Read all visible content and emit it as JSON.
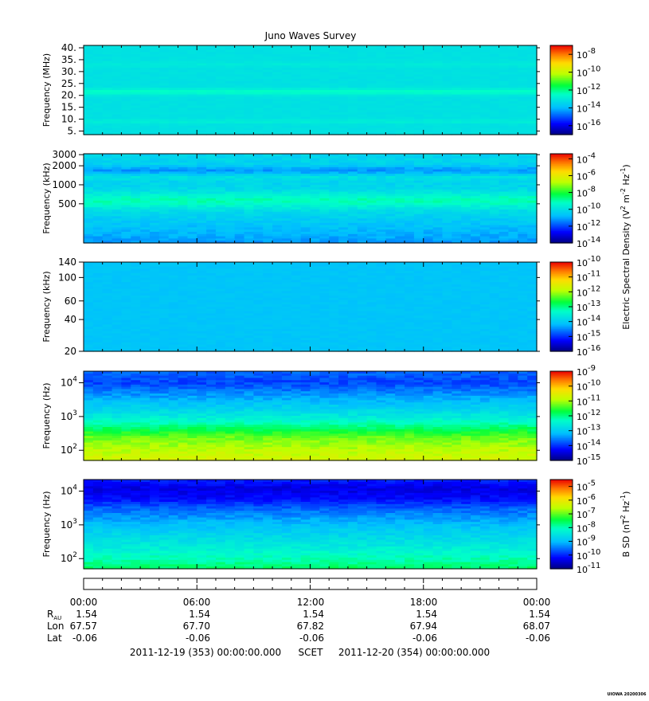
{
  "chart_data": {
    "type": "heatmap",
    "title": "Juno Waves Survey",
    "panels": [
      {
        "ylabel": "Frequency (MHz)",
        "yscale": "linear",
        "ylim": [
          3.5,
          41
        ],
        "yticks": [
          {
            "v": 5,
            "l": "5."
          },
          {
            "v": 10,
            "l": "10."
          },
          {
            "v": 15,
            "l": "15."
          },
          {
            "v": 20,
            "l": "20."
          },
          {
            "v": 25,
            "l": "25."
          },
          {
            "v": 30,
            "l": "30."
          },
          {
            "v": 35,
            "l": "35."
          },
          {
            "v": 40,
            "l": "40."
          }
        ],
        "colorbar": {
          "min_exp": -17,
          "max_exp": -7,
          "ticks": [
            {
              "exp": -8,
              "l": "-8"
            },
            {
              "exp": -10,
              "l": "-10"
            },
            {
              "exp": -12,
              "l": "-12"
            },
            {
              "exp": -14,
              "l": "-14"
            },
            {
              "exp": -16,
              "l": "-16"
            }
          ]
        },
        "background_log": -13.2,
        "bands": [
          {
            "y": 21.5,
            "w": 0.9,
            "log": -12.5
          },
          {
            "y": 9,
            "w": 0.6,
            "log": -12.9
          },
          {
            "y": 33,
            "w": 0.8,
            "log": -13.0
          }
        ],
        "noise": 0.15,
        "fade_low": false
      },
      {
        "ylabel": "Frequency (kHz)",
        "yscale": "log",
        "ylim": [
          120,
          3100
        ],
        "yticks": [
          {
            "v": 500,
            "l": "500"
          },
          {
            "v": 1000,
            "l": "1000"
          },
          {
            "v": 2000,
            "l": "2000"
          },
          {
            "v": 3000,
            "l": "3000"
          }
        ],
        "colorbar": {
          "min_exp": -14,
          "max_exp": -3.4,
          "ticks": [
            {
              "exp": -4,
              "l": "-4"
            },
            {
              "exp": -6,
              "l": "-6"
            },
            {
              "exp": -8,
              "l": "-8"
            },
            {
              "exp": -10,
              "l": "-10"
            },
            {
              "exp": -12,
              "l": "-12"
            },
            {
              "exp": -14,
              "l": "-14"
            }
          ]
        },
        "background_log": -10.3,
        "bands": [
          {
            "y": 560,
            "w": 0.09,
            "log": -9.1
          },
          {
            "y": 1700,
            "w": 0.045,
            "log": -11.2
          },
          {
            "y": 1300,
            "w": 0.03,
            "log": -10.0
          }
        ],
        "noise": 0.5,
        "fade_low": true
      },
      {
        "ylabel": "Frequency (kHz)",
        "yscale": "log",
        "ylim": [
          20,
          140
        ],
        "yticks": [
          {
            "v": 20,
            "l": "20"
          },
          {
            "v": 40,
            "l": "40"
          },
          {
            "v": 60,
            "l": "60"
          },
          {
            "v": 100,
            "l": "100"
          },
          {
            "v": 140,
            "l": "140"
          }
        ],
        "colorbar": {
          "min_exp": -16,
          "max_exp": -10,
          "ticks": [
            {
              "exp": -10,
              "l": "-10"
            },
            {
              "exp": -11,
              "l": "-11"
            },
            {
              "exp": -12,
              "l": "-12"
            },
            {
              "exp": -13,
              "l": "-13"
            },
            {
              "exp": -14,
              "l": "-14"
            },
            {
              "exp": -15,
              "l": "-15"
            },
            {
              "exp": -16,
              "l": "-16"
            }
          ]
        },
        "background_log": -14.1,
        "bands": [],
        "noise": 0.12,
        "fade_low": false
      },
      {
        "ylabel": "Frequency (Hz)",
        "yscale": "log",
        "ylim": [
          50,
          22000
        ],
        "yticks": [
          {
            "v": 100,
            "l": "10",
            "e": "2"
          },
          {
            "v": 1000,
            "l": "10",
            "e": "3"
          },
          {
            "v": 10000,
            "l": "10",
            "e": "4"
          }
        ],
        "colorbar": {
          "min_exp": -15,
          "max_exp": -9,
          "ticks": [
            {
              "exp": -9,
              "l": "-9"
            },
            {
              "exp": -10,
              "l": "-10"
            },
            {
              "exp": -11,
              "l": "-11"
            },
            {
              "exp": -12,
              "l": "-12"
            },
            {
              "exp": -13,
              "l": "-13"
            },
            {
              "exp": -14,
              "l": "-14"
            },
            {
              "exp": -15,
              "l": "-15"
            }
          ]
        },
        "profile": [
          {
            "f": 50,
            "log": -10.7
          },
          {
            "f": 100,
            "log": -10.9
          },
          {
            "f": 250,
            "log": -11.3
          },
          {
            "f": 500,
            "log": -12.0
          },
          {
            "f": 1000,
            "log": -12.6
          },
          {
            "f": 2000,
            "log": -13.0
          },
          {
            "f": 5000,
            "log": -13.5
          },
          {
            "f": 10000,
            "log": -13.9
          },
          {
            "f": 22000,
            "log": -13.7
          }
        ],
        "noise": 0.35,
        "fade_low": false
      },
      {
        "ylabel": "Frequency (Hz)",
        "yscale": "log",
        "ylim": [
          50,
          22000
        ],
        "yticks": [
          {
            "v": 100,
            "l": "10",
            "e": "2"
          },
          {
            "v": 1000,
            "l": "10",
            "e": "3"
          },
          {
            "v": 10000,
            "l": "10",
            "e": "4"
          }
        ],
        "colorbar": {
          "min_exp": -11,
          "max_exp": -4.5,
          "ticks": [
            {
              "exp": -5,
              "l": "-5"
            },
            {
              "exp": -6,
              "l": "-6"
            },
            {
              "exp": -7,
              "l": "-7"
            },
            {
              "exp": -8,
              "l": "-8"
            },
            {
              "exp": -9,
              "l": "-9"
            },
            {
              "exp": -10,
              "l": "-10"
            },
            {
              "exp": -11,
              "l": "-11"
            }
          ]
        },
        "profile": [
          {
            "f": 50,
            "log": -7.6
          },
          {
            "f": 100,
            "log": -8.0
          },
          {
            "f": 300,
            "log": -8.5
          },
          {
            "f": 1000,
            "log": -9.0
          },
          {
            "f": 3000,
            "log": -9.6
          },
          {
            "f": 6000,
            "log": -10.2
          },
          {
            "f": 12000,
            "log": -10.4
          },
          {
            "f": 22000,
            "log": -10.0
          }
        ],
        "noise": 0.35,
        "fade_low": false
      }
    ],
    "colorbar_titles": {
      "electric": {
        "base": "Electric Spectral Density (V",
        "sup": "2",
        "mid": " m",
        "sup2": "-2",
        "mid2": " Hz",
        "sup3": "-1",
        "end": ")"
      },
      "magnetic": {
        "base": "B SD (nT",
        "sup": "2",
        "mid": " Hz",
        "sup2": "-1",
        "end": ")"
      }
    },
    "colorbar_base": "10",
    "time_axis": {
      "ticks": [
        "00:00",
        "06:00",
        "12:00",
        "18:00",
        "00:00"
      ],
      "rows": [
        {
          "label": "R",
          "sub": "AU",
          "values": [
            "1.54",
            "1.54",
            "1.54",
            "1.54",
            "1.54"
          ]
        },
        {
          "label": "Lon",
          "values": [
            "67.57",
            "67.70",
            "67.82",
            "67.94",
            "68.07"
          ]
        },
        {
          "label": "Lat",
          "values": [
            "-0.06",
            "-0.06",
            "-0.06",
            "-0.06",
            "-0.06"
          ]
        }
      ],
      "footer": {
        "start": "2011-12-19 (353) 00:00:00.000",
        "mid": "SCET",
        "end": "2011-12-20 (354) 00:00:00.000"
      }
    },
    "stamp": "UIOWA 20200306"
  }
}
